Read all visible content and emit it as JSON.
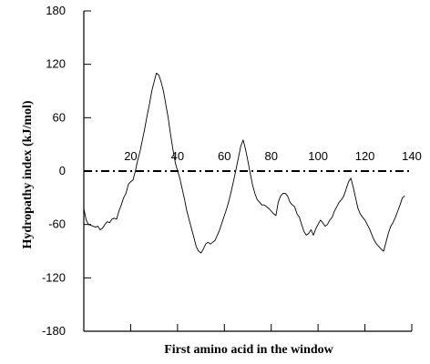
{
  "chart_data": {
    "type": "line",
    "title": "",
    "xlabel": "First amino acid in the window",
    "ylabel": "Hydropathy index (kJ/mol)",
    "xlim": [
      0,
      140
    ],
    "ylim": [
      -180,
      180
    ],
    "x_ticks": [
      20,
      40,
      60,
      80,
      100,
      120,
      140
    ],
    "y_ticks": [
      180,
      120,
      60,
      0,
      -60,
      -120,
      -180
    ],
    "grid": false,
    "legend": "none",
    "line_color": "#000000",
    "reference_line": {
      "y": 0,
      "style": "dash-dot"
    },
    "series": [
      {
        "x": [
          0,
          1,
          2,
          3,
          4,
          5,
          6,
          7,
          8,
          9,
          10,
          11,
          12,
          13,
          14,
          15,
          16,
          17,
          18,
          19,
          20,
          21,
          22,
          23,
          24,
          25,
          26,
          27,
          28,
          29,
          30,
          31,
          32,
          33,
          34,
          35,
          36,
          37,
          38,
          39,
          40,
          41,
          42,
          43,
          44,
          45,
          46,
          47,
          48,
          49,
          50,
          51,
          52,
          53,
          54,
          55,
          56,
          57,
          58,
          59,
          60,
          61,
          62,
          63,
          64,
          65,
          66,
          67,
          68,
          69,
          70,
          71,
          72,
          73,
          74,
          75,
          76,
          77,
          78,
          79,
          80,
          81,
          82,
          83,
          84,
          85,
          86,
          87,
          88,
          89,
          90,
          91,
          92,
          93,
          94,
          95,
          96,
          97,
          98,
          99,
          100,
          101,
          102,
          103,
          104,
          105,
          106,
          107,
          108,
          109,
          110,
          111,
          112,
          113,
          114,
          115,
          116,
          117,
          118,
          119,
          120,
          121,
          122,
          123,
          124,
          125,
          126,
          127,
          128,
          129,
          130,
          131,
          132,
          133,
          134,
          135,
          136,
          137
        ],
        "values": [
          -42,
          -55,
          -60,
          -61,
          -62,
          -63,
          -62,
          -66,
          -64,
          -60,
          -57,
          -58,
          -54,
          -53,
          -54,
          -45,
          -38,
          -30,
          -25,
          -15,
          -12,
          -10,
          0,
          12,
          22,
          35,
          48,
          62,
          75,
          90,
          100,
          110,
          108,
          100,
          90,
          75,
          60,
          42,
          25,
          10,
          0,
          -8,
          -20,
          -32,
          -45,
          -55,
          -65,
          -75,
          -85,
          -90,
          -92,
          -88,
          -82,
          -80,
          -82,
          -80,
          -78,
          -72,
          -66,
          -58,
          -50,
          -42,
          -33,
          -22,
          -10,
          2,
          15,
          28,
          35,
          25,
          12,
          -2,
          -15,
          -25,
          -32,
          -35,
          -38,
          -38,
          -40,
          -42,
          -45,
          -48,
          -50,
          -35,
          -28,
          -25,
          -25,
          -28,
          -35,
          -38,
          -40,
          -48,
          -52,
          -60,
          -68,
          -72,
          -70,
          -66,
          -72,
          -65,
          -60,
          -55,
          -58,
          -62,
          -60,
          -55,
          -52,
          -45,
          -40,
          -35,
          -32,
          -28,
          -20,
          -12,
          -8,
          -18,
          -30,
          -42,
          -48,
          -52,
          -55,
          -60,
          -65,
          -72,
          -78,
          -82,
          -85,
          -88,
          -90,
          -80,
          -70,
          -62,
          -58,
          -52,
          -45,
          -38,
          -30,
          -28
        ]
      }
    ]
  }
}
